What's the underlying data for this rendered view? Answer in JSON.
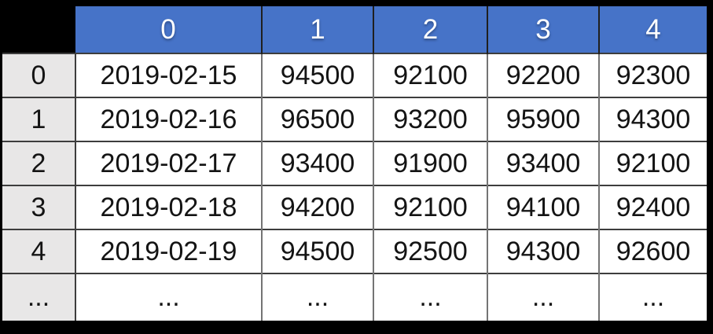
{
  "theme": {
    "outer_bg": "#000000",
    "header_bg": "#4673C8",
    "header_text": "#FFFFFF",
    "header_divider": "#1F1F1F",
    "index_bg": "#E8E7E7",
    "cell_bg": "#FFFFFF",
    "text_color": "#141414",
    "row_border": "#3D3D3D",
    "col_border": "#747474"
  },
  "chart_data": {
    "type": "table",
    "columns": [
      "0",
      "1",
      "2",
      "3",
      "4"
    ],
    "index": [
      "0",
      "1",
      "2",
      "3",
      "4",
      "..."
    ],
    "rows": [
      [
        "2019-02-15",
        "94500",
        "92100",
        "92200",
        "92300"
      ],
      [
        "2019-02-16",
        "96500",
        "93200",
        "95900",
        "94300"
      ],
      [
        "2019-02-17",
        "93400",
        "91900",
        "93400",
        "92100"
      ],
      [
        "2019-02-18",
        "94200",
        "92100",
        "94100",
        "92400"
      ],
      [
        "2019-02-19",
        "94500",
        "92500",
        "94300",
        "92600"
      ],
      [
        "...",
        "...",
        "...",
        "...",
        "..."
      ]
    ]
  }
}
